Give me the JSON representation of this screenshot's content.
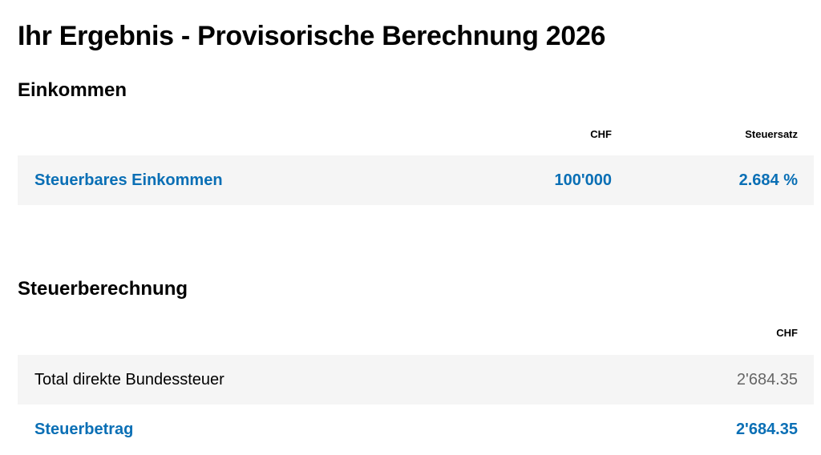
{
  "title": "Ihr Ergebnis - Provisorische Berechnung 2026",
  "einkommen": {
    "heading": "Einkommen",
    "col_chf": "CHF",
    "col_rate": "Steuersatz",
    "row": {
      "label": "Steuerbares Einkommen",
      "chf": "100'000",
      "rate": "2.684 %"
    }
  },
  "steuerberechnung": {
    "heading": "Steuerberechnung",
    "col_chf": "CHF",
    "rows": [
      {
        "label": "Total direkte Bundessteuer",
        "chf": "2'684.35"
      }
    ],
    "total": {
      "label": "Steuerbetrag",
      "chf": "2'684.35"
    }
  },
  "colors": {
    "accent": "#0a6fb5",
    "row_bg": "#f5f5f5"
  }
}
